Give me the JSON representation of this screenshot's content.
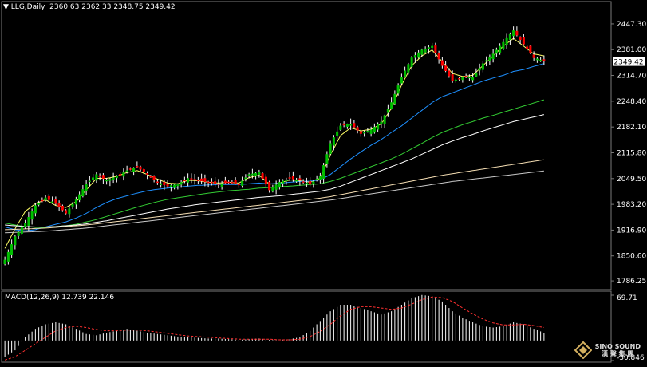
{
  "header": {
    "symbol": "LLG,Daily",
    "ohlc": "2360.63 2362.33 2348.75 2349.42"
  },
  "macd_header": "MACD(12,26,9) 12.739 22.146",
  "watermark": {
    "text": "SINO SOUND",
    "cjk": "漢 聲 集 團"
  },
  "colors": {
    "bull": "#00c000",
    "bear": "#ff0000",
    "wick": "#ffffff",
    "ma5": "#ffff66",
    "ma20": "#1e90ff",
    "ma40": "#33cc33",
    "ma60": "#ffffff",
    "ma120": "#f5deb3",
    "ma200": "#c8c8c8",
    "macd_hist": "#ffffff",
    "macd_signal": "#ff3030"
  },
  "chart_data": [
    {
      "type": "candlestick",
      "title": "LLG,Daily",
      "yticks": [
        1786.25,
        1850.6,
        1916.9,
        1983.2,
        2049.5,
        2115.8,
        2182.1,
        2248.4,
        2314.7,
        2381.0,
        2447.3
      ],
      "ylim": [
        1770,
        2480
      ],
      "current_price_label": "2349.42",
      "grid": false,
      "anchors": [
        1840,
        1900,
        1935,
        1980,
        2000,
        1985,
        1960,
        1995,
        2035,
        2060,
        2045,
        2055,
        2070,
        2080,
        2060,
        2040,
        2030,
        2035,
        2050,
        2045,
        2040,
        2035,
        2040,
        2035,
        2060,
        2065,
        2020,
        2040,
        2050,
        2045,
        2035,
        2055,
        2140,
        2185,
        2190,
        2165,
        2175,
        2195,
        2245,
        2310,
        2360,
        2380,
        2390,
        2340,
        2300,
        2310,
        2310,
        2345,
        2370,
        2400,
        2430,
        2395,
        2360,
        2352
      ],
      "candles_per_anchor": 3,
      "ma_series": [
        {
          "key": "ma5",
          "vals": [
            1870,
            1920,
            1965,
            1985,
            1995,
            1980,
            1975,
            1990,
            2020,
            2050,
            2050,
            2055,
            2065,
            2070,
            2060,
            2048,
            2038,
            2036,
            2045,
            2044,
            2040,
            2038,
            2040,
            2038,
            2052,
            2058,
            2035,
            2038,
            2046,
            2044,
            2040,
            2050,
            2110,
            2160,
            2180,
            2172,
            2176,
            2190,
            2230,
            2290,
            2340,
            2365,
            2380,
            2350,
            2320,
            2312,
            2315,
            2340,
            2365,
            2390,
            2410,
            2390,
            2370,
            2365
          ]
        },
        {
          "key": "ma20",
          "vals": [
            1925,
            1918,
            1915,
            1918,
            1925,
            1932,
            1938,
            1948,
            1960,
            1975,
            1988,
            1998,
            2005,
            2012,
            2018,
            2022,
            2025,
            2027,
            2030,
            2032,
            2033,
            2034,
            2034,
            2034,
            2036,
            2038,
            2036,
            2037,
            2040,
            2042,
            2043,
            2046,
            2060,
            2080,
            2100,
            2118,
            2135,
            2150,
            2168,
            2185,
            2205,
            2225,
            2245,
            2260,
            2270,
            2280,
            2290,
            2300,
            2308,
            2315,
            2325,
            2330,
            2338,
            2345
          ]
        },
        {
          "key": "ma40",
          "vals": [
            1935,
            1930,
            1926,
            1924,
            1924,
            1926,
            1928,
            1932,
            1938,
            1944,
            1952,
            1960,
            1968,
            1976,
            1983,
            1990,
            1996,
            2000,
            2004,
            2008,
            2012,
            2015,
            2018,
            2020,
            2022,
            2025,
            2026,
            2028,
            2030,
            2032,
            2034,
            2036,
            2042,
            2050,
            2060,
            2070,
            2080,
            2090,
            2100,
            2112,
            2126,
            2140,
            2155,
            2168,
            2178,
            2188,
            2196,
            2205,
            2212,
            2220,
            2228,
            2236,
            2244,
            2252
          ]
        },
        {
          "key": "ma60",
          "vals": [
            1930,
            1928,
            1926,
            1925,
            1925,
            1926,
            1928,
            1930,
            1933,
            1937,
            1941,
            1946,
            1951,
            1956,
            1961,
            1966,
            1971,
            1975,
            1979,
            1983,
            1986,
            1989,
            1992,
            1995,
            1998,
            2001,
            2003,
            2005,
            2008,
            2011,
            2014,
            2017,
            2022,
            2030,
            2040,
            2050,
            2060,
            2070,
            2080,
            2090,
            2100,
            2112,
            2124,
            2136,
            2146,
            2155,
            2163,
            2172,
            2180,
            2188,
            2196,
            2202,
            2208,
            2214
          ]
        },
        {
          "key": "ma120",
          "vals": [
            1918,
            1919,
            1920,
            1921,
            1922,
            1924,
            1926,
            1928,
            1930,
            1933,
            1936,
            1939,
            1942,
            1945,
            1948,
            1951,
            1954,
            1957,
            1960,
            1963,
            1966,
            1969,
            1972,
            1975,
            1978,
            1981,
            1984,
            1987,
            1990,
            1993,
            1996,
            1999,
            2003,
            2008,
            2013,
            2018,
            2023,
            2028,
            2033,
            2038,
            2043,
            2048,
            2053,
            2058,
            2062,
            2066,
            2070,
            2074,
            2078,
            2082,
            2086,
            2090,
            2094,
            2098
          ]
        },
        {
          "key": "ma200",
          "vals": [
            1910,
            1911,
            1912,
            1913,
            1914,
            1916,
            1918,
            1920,
            1922,
            1925,
            1928,
            1931,
            1934,
            1937,
            1940,
            1943,
            1946,
            1949,
            1952,
            1955,
            1958,
            1961,
            1964,
            1967,
            1970,
            1973,
            1976,
            1979,
            1982,
            1985,
            1988,
            1991,
            1994,
            1998,
            2002,
            2006,
            2010,
            2014,
            2018,
            2022,
            2026,
            2030,
            2034,
            2038,
            2042,
            2045,
            2048,
            2051,
            2054,
            2057,
            2060,
            2063,
            2066,
            2069
          ]
        }
      ]
    },
    {
      "type": "bar",
      "title": "MACD(12,26,9) 12.739 22.146",
      "yticks": [
        69.71,
        -30.846
      ],
      "ylim": [
        -30.846,
        69.71
      ],
      "hist_anchors": [
        -25,
        -15,
        5,
        18,
        25,
        28,
        25,
        18,
        10,
        8,
        12,
        15,
        18,
        15,
        12,
        10,
        8,
        6,
        5,
        4,
        3,
        3,
        2,
        1,
        2,
        3,
        1,
        0,
        2,
        5,
        15,
        30,
        45,
        55,
        55,
        50,
        45,
        40,
        45,
        55,
        65,
        70,
        68,
        60,
        45,
        35,
        28,
        22,
        20,
        22,
        28,
        25,
        18,
        12
      ],
      "signal_anchors": [
        -30,
        -25,
        -15,
        -5,
        5,
        15,
        20,
        22,
        20,
        17,
        15,
        15,
        16,
        16,
        15,
        13,
        11,
        9,
        7,
        6,
        5,
        4,
        3,
        2,
        2,
        2,
        2,
        1,
        1,
        2,
        6,
        14,
        25,
        38,
        48,
        52,
        52,
        50,
        48,
        50,
        56,
        63,
        67,
        66,
        60,
        50,
        41,
        33,
        27,
        24,
        24,
        25,
        23,
        20
      ]
    }
  ]
}
